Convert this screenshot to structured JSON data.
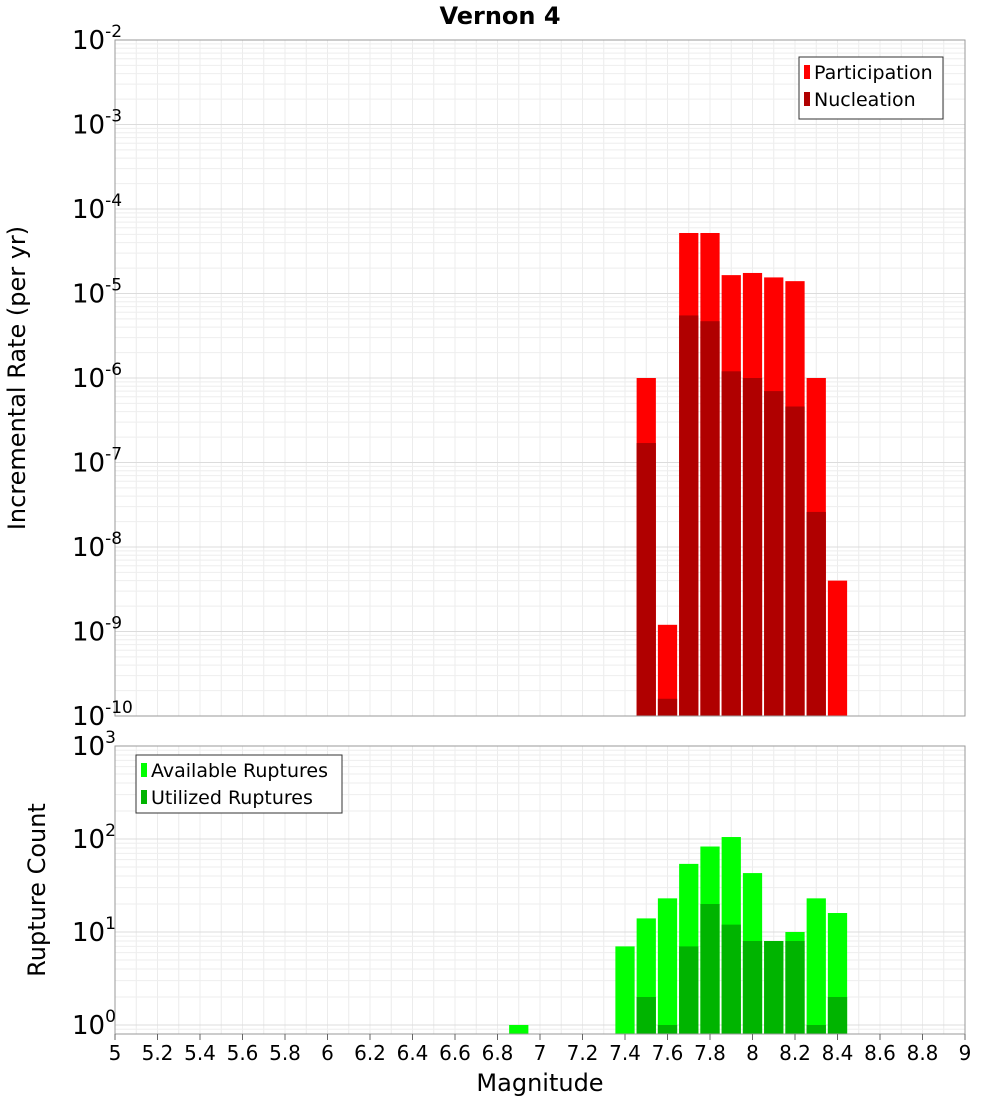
{
  "title": "Vernon 4",
  "chart_data": [
    {
      "type": "bar",
      "ylabel": "Incremental Rate (per yr)",
      "xlabel": "",
      "yscale": "log",
      "ylim": [
        1e-10,
        0.01
      ],
      "xlim": [
        5,
        9
      ],
      "y_tick_base": "10",
      "y_tick_exponents": [
        "-10",
        "-9",
        "-8",
        "-7",
        "-6",
        "-5",
        "-4",
        "-3",
        "-2"
      ],
      "grid": true,
      "legend_position": "top-right",
      "x": [
        7.5,
        7.6,
        7.7,
        7.8,
        7.9,
        8.0,
        8.1,
        8.2,
        8.3,
        8.4
      ],
      "series": [
        {
          "name": "Participation",
          "color": "#ff0000",
          "values": [
            1e-06,
            1.2e-09,
            5.2e-05,
            5.2e-05,
            1.65e-05,
            1.75e-05,
            1.55e-05,
            1.4e-05,
            1e-06,
            4e-09
          ]
        },
        {
          "name": "Nucleation",
          "color": "#b00000",
          "values": [
            1.7e-07,
            1.6e-10,
            5.5e-06,
            4.7e-06,
            1.2e-06,
            1e-06,
            7e-07,
            4.6e-07,
            2.6e-08,
            null
          ]
        }
      ]
    },
    {
      "type": "bar",
      "ylabel": "Rupture Count",
      "xlabel": "Magnitude",
      "yscale": "log",
      "ylim": [
        0.8,
        1000
      ],
      "xlim": [
        5,
        9
      ],
      "y_tick_base": "10",
      "y_tick_exponents": [
        "0",
        "1",
        "2",
        "3"
      ],
      "x_ticks": [
        "5",
        "5.2",
        "5.4",
        "5.6",
        "5.8",
        "6",
        "6.2",
        "6.4",
        "6.6",
        "6.8",
        "7",
        "7.2",
        "7.4",
        "7.6",
        "7.8",
        "8",
        "8.2",
        "8.4",
        "8.6",
        "8.8",
        "9"
      ],
      "grid": true,
      "legend_position": "top-left",
      "x": [
        6.9,
        7.4,
        7.5,
        7.6,
        7.7,
        7.8,
        7.9,
        8.0,
        8.1,
        8.2,
        8.3,
        8.4
      ],
      "series": [
        {
          "name": "Available Ruptures",
          "color": "#00ff00",
          "values": [
            1,
            7,
            14,
            23,
            54,
            83,
            105,
            43,
            8,
            10,
            23,
            16
          ]
        },
        {
          "name": "Utilized Ruptures",
          "color": "#00b400",
          "values": [
            null,
            null,
            2,
            1,
            7,
            20,
            12,
            8,
            8,
            8,
            1,
            2
          ]
        }
      ]
    }
  ]
}
